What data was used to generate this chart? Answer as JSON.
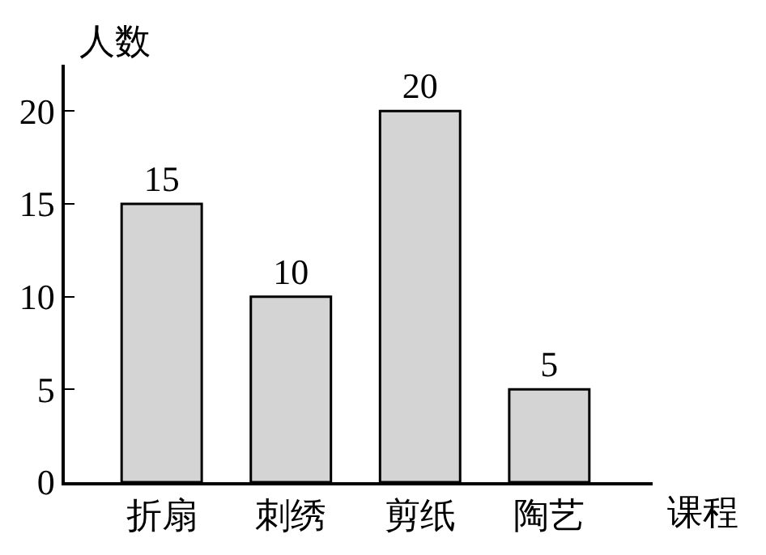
{
  "chart_data": {
    "type": "bar",
    "xlabel": "课程",
    "ylabel": "人数",
    "categories": [
      "折扇",
      "刺绣",
      "剪纸",
      "陶艺"
    ],
    "values": [
      15,
      10,
      20,
      5
    ],
    "color": "#d4d4d4",
    "ylim": [
      0,
      22.5
    ],
    "yticks": [
      0,
      5,
      10,
      15,
      20
    ],
    "data_labels": true
  }
}
